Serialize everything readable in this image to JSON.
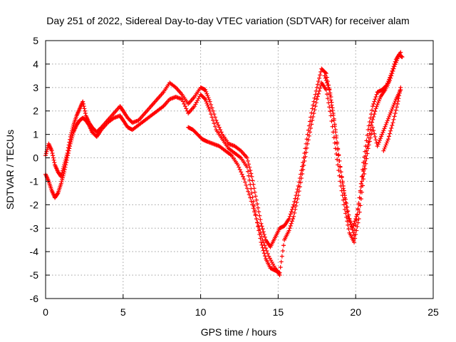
{
  "chart_data": {
    "type": "scatter",
    "title": "Day 251 of 2022, Sidereal Day-to-day VTEC variation (SDTVAR) for receiver alam",
    "xlabel": "GPS time / hours",
    "ylabel": "SDTVAR / TECUs",
    "xlim": [
      0,
      25
    ],
    "ylim": [
      -6,
      5
    ],
    "xticks": [
      0,
      5,
      10,
      15,
      20,
      25
    ],
    "yticks": [
      -6,
      -5,
      -4,
      -3,
      -2,
      -1,
      0,
      1,
      2,
      3,
      4,
      5
    ],
    "xtick_labels": [
      "0",
      "5",
      "10",
      "15",
      "20",
      "25"
    ],
    "ytick_labels": [
      "-6",
      "-5",
      "-4",
      "-3",
      "-2",
      "-1",
      "0",
      "1",
      "2",
      "3",
      "4",
      "5"
    ],
    "grid": true,
    "legend": "none",
    "marker": "+",
    "color": "#ff0000",
    "series": [
      {
        "x": [
          0.0,
          0.2,
          0.4,
          0.6,
          0.8,
          1.0,
          1.2,
          1.4,
          1.6,
          1.8,
          2.0,
          2.2,
          2.4,
          2.6,
          2.8,
          3.0,
          3.3,
          3.6,
          4.0,
          4.4,
          4.8,
          5.0,
          5.3,
          5.6,
          6.0,
          6.4,
          6.8,
          7.2,
          7.6,
          8.0,
          8.4,
          8.8,
          9.2,
          9.6,
          10.0,
          10.3,
          10.6,
          11.0,
          11.4,
          11.8,
          12.2,
          12.6,
          13.0,
          13.3,
          13.6,
          13.9,
          14.2,
          14.5,
          14.8,
          15.1,
          15.4,
          15.7,
          16.0,
          16.3,
          16.6,
          16.9,
          17.2,
          17.5,
          17.8,
          18.1,
          18.4,
          18.7,
          19.0,
          19.3,
          19.6,
          19.9,
          20.2,
          20.5,
          20.8,
          21.1,
          21.4,
          21.7,
          22.0,
          22.3,
          22.6,
          22.9
        ],
        "y": [
          0.1,
          0.6,
          0.3,
          -0.3,
          -0.6,
          -0.8,
          -0.3,
          0.2,
          0.9,
          1.4,
          1.8,
          2.1,
          2.4,
          1.8,
          1.5,
          1.3,
          1.1,
          1.3,
          1.6,
          1.9,
          2.2,
          2.0,
          1.7,
          1.5,
          1.6,
          1.9,
          2.2,
          2.5,
          2.8,
          3.2,
          3.0,
          2.7,
          2.3,
          2.6,
          3.0,
          2.9,
          2.4,
          1.6,
          1.0,
          0.6,
          0.5,
          0.3,
          0.0,
          -0.8,
          -1.8,
          -2.8,
          -3.5,
          -3.8,
          -3.4,
          -3.0,
          -2.9,
          -2.6,
          -2.0,
          -1.2,
          -0.2,
          1.0,
          2.1,
          3.0,
          3.8,
          3.6,
          2.6,
          1.2,
          -0.4,
          -1.6,
          -2.6,
          -3.3,
          -2.0,
          -0.2,
          1.2,
          2.2,
          2.8,
          2.9,
          3.1,
          3.6,
          4.2,
          4.5
        ]
      },
      {
        "x": [
          0.0,
          0.2,
          0.4,
          0.6,
          0.8,
          1.0,
          1.2,
          1.4,
          1.6,
          1.8,
          2.0,
          2.2,
          2.4,
          2.6,
          2.8,
          3.0,
          3.3,
          3.6,
          4.0,
          4.4,
          4.8,
          5.0,
          5.3,
          5.6,
          6.0,
          6.4,
          6.8,
          7.2,
          7.6,
          8.0,
          8.4,
          8.8,
          9.2,
          9.6,
          10.0,
          10.3,
          10.6,
          11.0,
          11.4,
          11.8,
          12.2,
          12.6,
          13.0,
          13.3,
          13.6,
          13.9,
          14.2,
          14.5,
          14.8,
          15.1,
          15.4,
          15.7,
          16.0,
          16.3,
          16.6,
          16.9,
          17.2,
          17.5,
          17.8,
          18.1,
          18.4,
          18.7,
          19.0,
          19.3,
          19.6,
          19.9,
          20.2,
          20.5,
          20.8,
          21.1,
          21.4,
          21.7,
          22.0,
          22.3,
          22.6,
          22.9
        ],
        "y": [
          -0.7,
          -1.0,
          -1.4,
          -1.7,
          -1.5,
          -1.1,
          -0.6,
          0.0,
          0.6,
          1.1,
          1.4,
          1.6,
          1.7,
          1.6,
          1.4,
          1.1,
          0.9,
          1.2,
          1.5,
          1.7,
          1.8,
          1.6,
          1.3,
          1.2,
          1.4,
          1.6,
          1.8,
          2.0,
          2.2,
          2.5,
          2.6,
          2.5,
          1.9,
          2.2,
          2.7,
          2.5,
          2.0,
          1.2,
          0.8,
          0.4,
          0.2,
          0.0,
          -0.4,
          -1.5,
          -2.6,
          -3.6,
          -4.3,
          -4.7,
          -4.8,
          -4.9,
          -3.5,
          -3.1,
          -2.5,
          -1.6,
          -0.5,
          0.6,
          1.6,
          2.5,
          3.2,
          2.9,
          1.8,
          0.4,
          -1.0,
          -2.2,
          -3.2,
          -3.6,
          -2.6,
          -0.9,
          0.4,
          1.3,
          0.5,
          1.0,
          1.5,
          2.0,
          2.5,
          2.9
        ]
      },
      {
        "x": [
          9.2,
          9.5,
          9.8,
          10.1,
          10.4,
          10.8,
          11.2,
          11.6,
          12.0,
          12.4,
          12.8,
          13.2,
          13.6,
          14.0,
          14.4,
          14.8,
          15.1
        ],
        "y": [
          1.3,
          1.2,
          1.0,
          0.8,
          0.7,
          0.6,
          0.5,
          0.3,
          0.1,
          -0.3,
          -0.9,
          -1.7,
          -2.6,
          -3.5,
          -4.2,
          -4.7,
          -5.0
        ]
      },
      {
        "x": [
          18.0,
          18.3,
          18.6,
          18.9,
          19.2,
          19.5,
          19.8,
          20.1,
          20.4,
          20.7,
          21.0,
          21.3,
          21.6,
          21.9,
          22.2,
          22.5,
          22.8,
          23.0
        ],
        "y": [
          3.5,
          2.9,
          1.6,
          0.1,
          -1.3,
          -2.5,
          -3.0,
          -2.4,
          -1.0,
          0.3,
          1.4,
          2.1,
          2.6,
          2.9,
          3.3,
          3.9,
          4.4,
          4.3
        ]
      },
      {
        "x": [
          21.8,
          22.1,
          22.4,
          22.7,
          22.9
        ],
        "y": [
          0.3,
          0.8,
          1.5,
          2.3,
          3.0
        ]
      }
    ]
  }
}
